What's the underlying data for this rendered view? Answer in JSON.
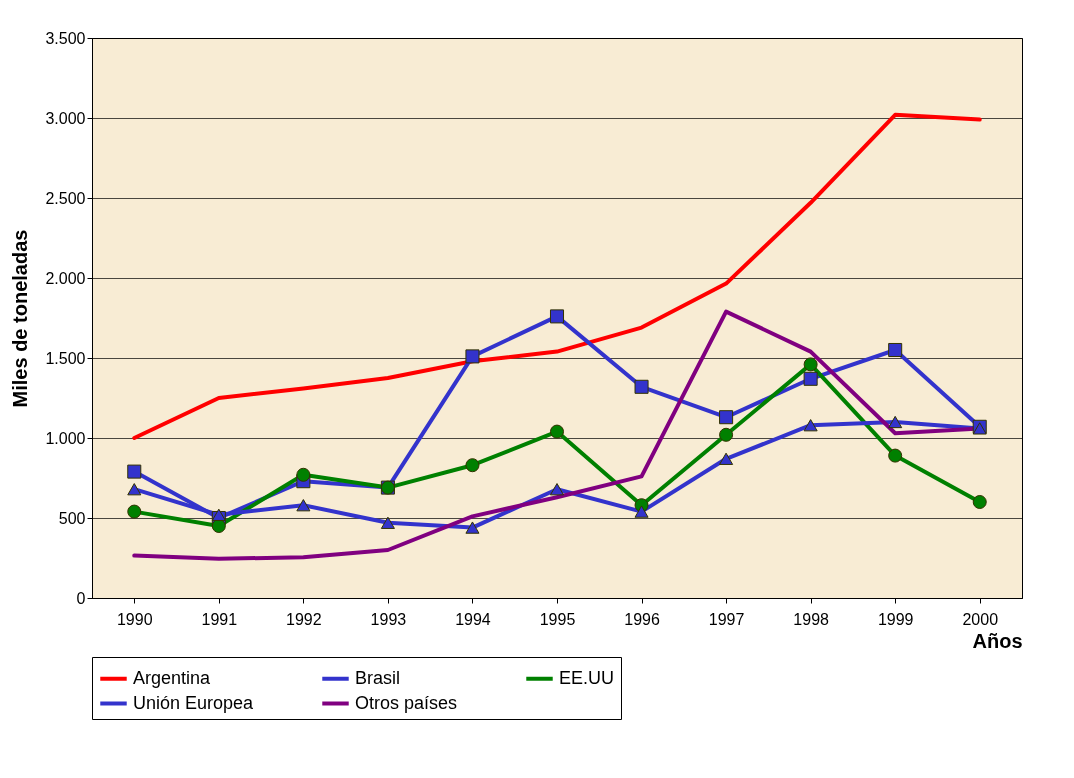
{
  "chart_data": {
    "type": "line",
    "xlabel": "Años",
    "ylabel": "Miles de toneladas",
    "categories": [
      "1990",
      "1991",
      "1992",
      "1993",
      "1994",
      "1995",
      "1996",
      "1997",
      "1998",
      "1999",
      "2000"
    ],
    "series": [
      {
        "name": "Argentina",
        "color": "#ff0000",
        "marker": "none",
        "values": [
          1000,
          1250,
          1310,
          1375,
          1480,
          1540,
          1690,
          1965,
          2470,
          3020,
          2990
        ]
      },
      {
        "name": "Brasil",
        "color": "#3333cc",
        "marker": "square",
        "values": [
          790,
          500,
          730,
          690,
          1510,
          1760,
          1320,
          1130,
          1370,
          1550,
          1070
        ]
      },
      {
        "name": "EE.UU",
        "color": "#008000",
        "marker": "circle",
        "values": [
          540,
          450,
          770,
          690,
          830,
          1040,
          580,
          1020,
          1460,
          890,
          600
        ]
      },
      {
        "name": "Unión Europea",
        "color": "#3333cc",
        "marker": "triangle",
        "values": [
          680,
          520,
          580,
          470,
          440,
          680,
          540,
          870,
          1080,
          1100,
          1060
        ]
      },
      {
        "name": "Otros países",
        "color": "#800080",
        "marker": "none",
        "values": [
          265,
          245,
          255,
          300,
          510,
          630,
          760,
          1790,
          1540,
          1030,
          1060
        ]
      }
    ],
    "ylim": [
      0,
      3500
    ],
    "yticks": [
      0,
      {
        "value": 500,
        "label": "500"
      },
      {
        "value": 1000,
        "label": "1.000"
      },
      {
        "value": 1500,
        "label": "1.500"
      },
      {
        "value": 2000,
        "label": "2.000"
      },
      {
        "value": 2500,
        "label": "2.500"
      },
      {
        "value": 3000,
        "label": "3.000"
      },
      {
        "value": 3500,
        "label": "3.500"
      }
    ],
    "grid": "y",
    "legend": "bottom"
  }
}
